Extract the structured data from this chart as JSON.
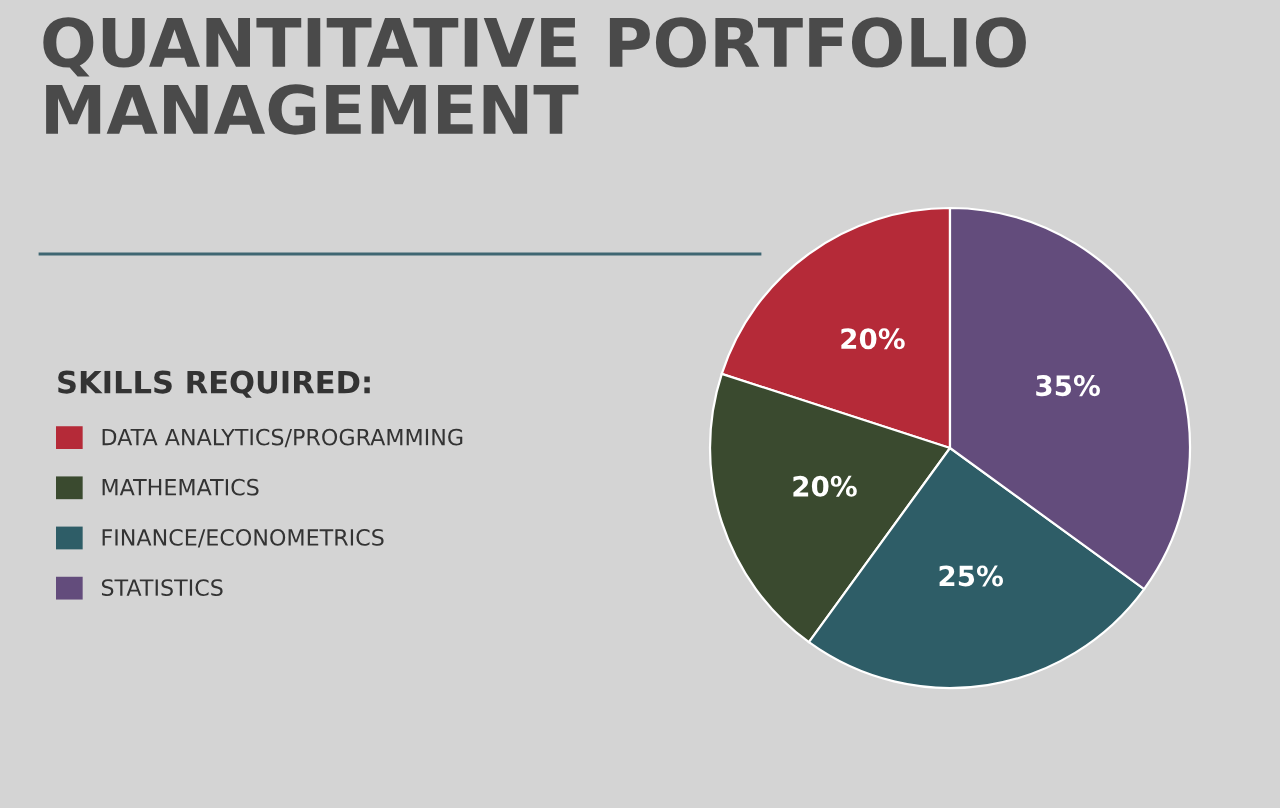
{
  "chart_data": {
    "type": "pie",
    "title": "QUANTITATIVE PORTFOLIO\nMANAGEMENT",
    "legend_title": "SKILLS REQUIRED:",
    "categories": [
      "DATA ANALYTICS/PROGRAMMING",
      "MATHEMATICS",
      "FINANCE/ECONOMETRICS",
      "STATISTICS"
    ],
    "values": [
      20,
      20,
      25,
      35
    ],
    "value_labels": [
      "20%",
      "20%",
      "25%",
      "35%"
    ],
    "colors": [
      "#b52a38",
      "#3a4a2f",
      "#2e5d67",
      "#634c7c"
    ],
    "legend": "left"
  }
}
